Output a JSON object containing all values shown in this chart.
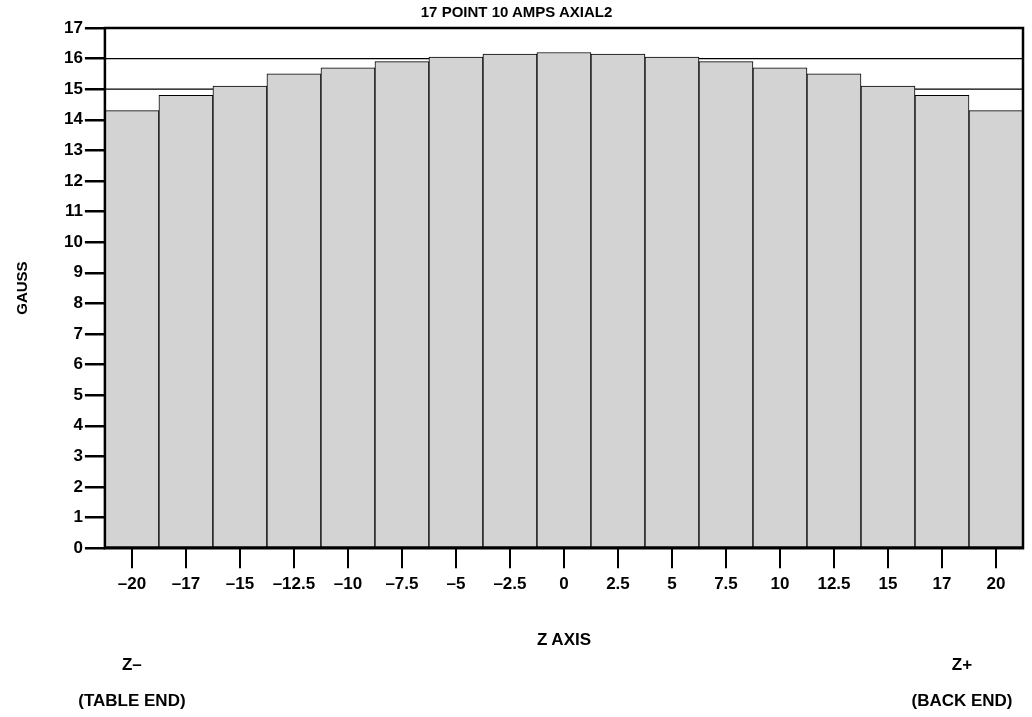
{
  "chart_data": {
    "type": "bar",
    "title": "17 POINT 10 AMPS AXIAL2",
    "xlabel": "Z AXIS",
    "ylabel": "GAUSS",
    "categories": [
      "–20",
      "–17",
      "–15",
      "–12.5",
      "–10",
      "–7.5",
      "–5",
      "–2.5",
      "0",
      "2.5",
      "5",
      "7.5",
      "10",
      "12.5",
      "15",
      "17",
      "20"
    ],
    "values": [
      14.3,
      14.8,
      15.1,
      15.5,
      15.7,
      15.9,
      16.05,
      16.15,
      16.2,
      16.15,
      16.05,
      15.9,
      15.7,
      15.5,
      15.1,
      14.8,
      14.3
    ],
    "color": "#d3d3d3",
    "ylim": [
      0,
      17
    ],
    "yticks": [
      0,
      1,
      2,
      3,
      4,
      5,
      6,
      7,
      8,
      9,
      10,
      11,
      12,
      13,
      14,
      15,
      16,
      17
    ],
    "ref_lines": [
      {
        "axis": "y",
        "value": 15,
        "color": "#000000"
      },
      {
        "axis": "y",
        "value": 16,
        "color": "#000000"
      }
    ],
    "annotations": [
      "Z–\n(TABLE END)",
      "Z+\n(BACK END)"
    ],
    "grid": false,
    "legend": false
  }
}
